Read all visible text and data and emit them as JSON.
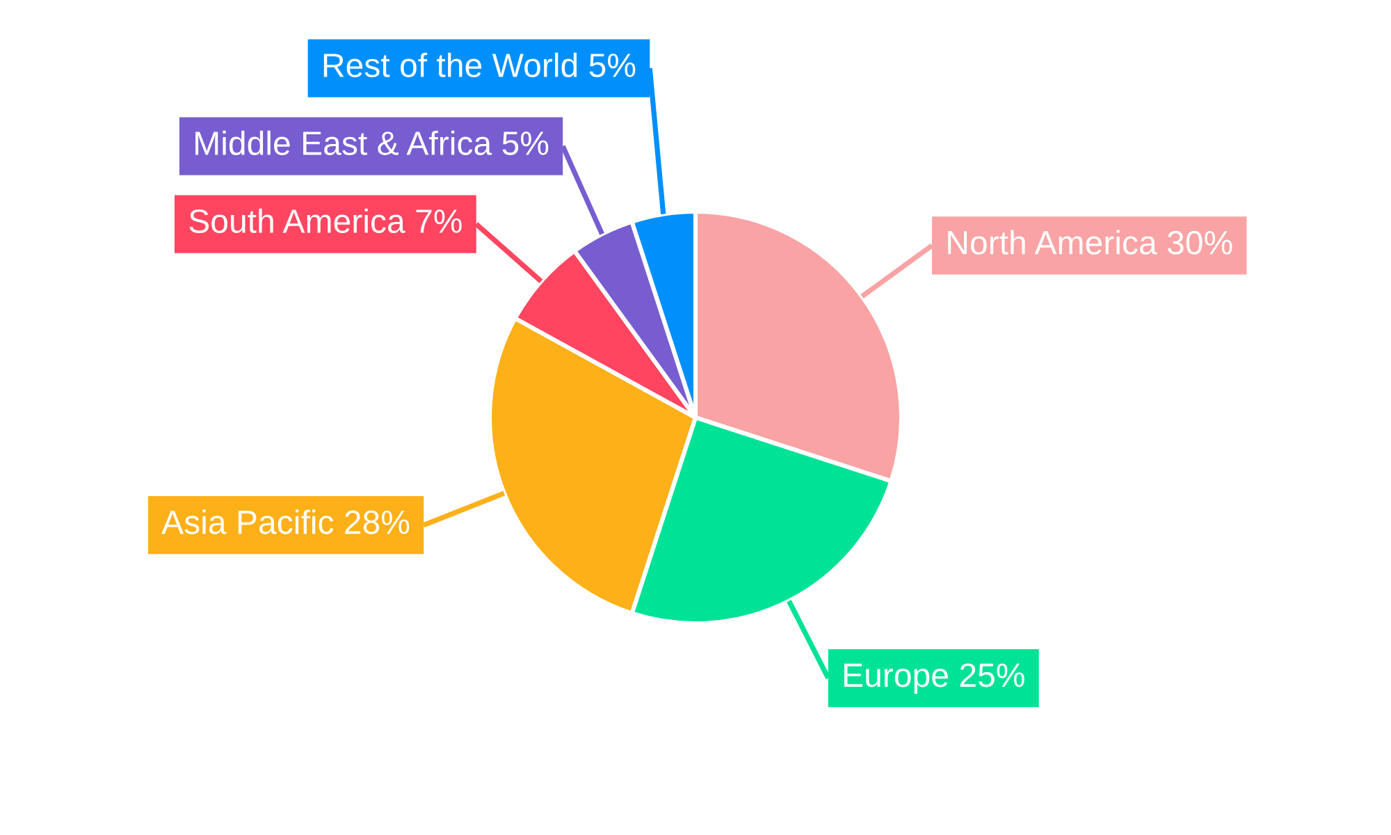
{
  "chart_data": {
    "type": "pie",
    "categories": [
      "North America",
      "Europe",
      "Asia Pacific",
      "South America",
      "Middle East & Africa",
      "Rest of the World"
    ],
    "values": [
      30,
      25,
      28,
      7,
      5,
      5
    ],
    "value_labels": [
      "30%",
      "25%",
      "28%",
      "7%",
      "5%",
      "5%"
    ],
    "colors": [
      "#f9a3a4",
      "#00e396",
      "#feb019",
      "#ff4560",
      "#775dd0",
      "#008ffb"
    ]
  }
}
